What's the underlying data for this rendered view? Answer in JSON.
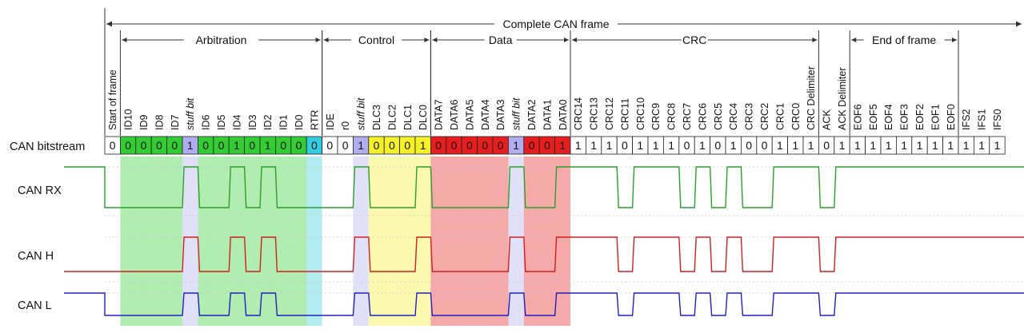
{
  "frame_label": "Complete CAN frame",
  "sections": [
    {
      "label": "Arbitration",
      "from": 1,
      "to": 13
    },
    {
      "label": "Control",
      "from": 14,
      "to": 20
    },
    {
      "label": "Data",
      "from": 21,
      "to": 29
    },
    {
      "label": "CRC",
      "from": 30,
      "to": 45
    },
    {
      "label": "End of frame",
      "from": 48,
      "to": 54
    }
  ],
  "fields": [
    "Start of frame",
    "ID10",
    "ID9",
    "ID8",
    "ID7",
    "stuff bit",
    "ID6",
    "ID5",
    "ID4",
    "ID3",
    "ID2",
    "ID1",
    "ID0",
    "RTR",
    "IDE",
    "r0",
    "stuff bit",
    "DLC3",
    "DLC2",
    "DLC1",
    "DLC0",
    "DATA7",
    "DATA6",
    "DATA5",
    "DATA4",
    "DATA3",
    "stuff bit",
    "DATA2",
    "DATA1",
    "DATA0",
    "CRC14",
    "CRC13",
    "CRC12",
    "CRC11",
    "CRC10",
    "CRC9",
    "CRC8",
    "CRC7",
    "CRC6",
    "CRC5",
    "CRC4",
    "CRC3",
    "CRC2",
    "CRC1",
    "CRC0",
    "CRC Delimiter",
    "ACK",
    "ACK Delimiter",
    "EOF6",
    "EOF5",
    "EOF4",
    "EOF3",
    "EOF2",
    "EOF1",
    "EOF0",
    "IFS2",
    "IFS1",
    "IFS0"
  ],
  "bits": [
    "0",
    "0",
    "0",
    "0",
    "0",
    "1",
    "0",
    "0",
    "1",
    "0",
    "1",
    "0",
    "0",
    "0",
    "0",
    "0",
    "1",
    "0",
    "0",
    "0",
    "1",
    "0",
    "0",
    "0",
    "0",
    "0",
    "1",
    "0",
    "0",
    "1",
    "1",
    "1",
    "1",
    "0",
    "1",
    "1",
    "1",
    "0",
    "1",
    "0",
    "1",
    "0",
    "0",
    "1",
    "1",
    "1",
    "0",
    "1",
    "1",
    "1",
    "1",
    "1",
    "1",
    "1",
    "1",
    "1",
    "1",
    "1"
  ],
  "rows": {
    "bitstream": "CAN bitstream",
    "rx": "CAN RX",
    "h": "CAN H",
    "l": "CAN L"
  },
  "colors": {
    "arbitration": "#33cc33",
    "stuff": "#b0aef0",
    "rtr": "#33cce0",
    "control": "#f5f028",
    "data": "#e61e1e",
    "rx_trace": "#2aa02a",
    "h_trace": "#d02020",
    "l_trace": "#2020c0"
  }
}
